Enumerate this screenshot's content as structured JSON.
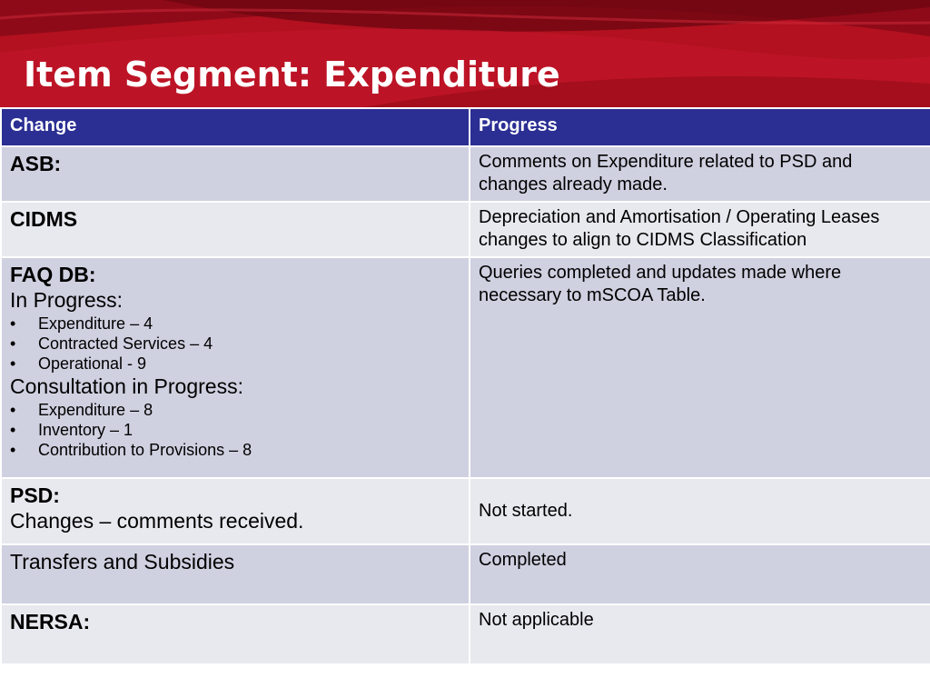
{
  "slide": {
    "title": "Item Segment:  Expenditure"
  },
  "table": {
    "headers": {
      "change": "Change",
      "progress": "Progress"
    },
    "rows": [
      {
        "change_label": "ASB:",
        "progress": "Comments on Expenditure related to PSD and changes already made."
      },
      {
        "change_label": "CIDMS",
        "progress": "Depreciation and Amortisation / Operating Leases changes to align to CIDMS Classification"
      },
      {
        "change_label": "FAQ DB:",
        "sub1": "In Progress:",
        "items1": [
          "Expenditure – 4",
          "Contracted Services – 4",
          "Operational - 9"
        ],
        "sub2": "Consultation in Progress:",
        "items2": [
          "Expenditure – 8",
          "Inventory – 1",
          "Contribution to Provisions – 8"
        ],
        "progress": "Queries completed and updates made where necessary to mSCOA Table."
      },
      {
        "change_label": "PSD:",
        "change_text": "Changes – comments received.",
        "progress": "Not started."
      },
      {
        "change_label": "Transfers and Subsidies",
        "progress": "Completed"
      },
      {
        "change_label": "NERSA:",
        "progress": "Not applicable"
      }
    ]
  }
}
